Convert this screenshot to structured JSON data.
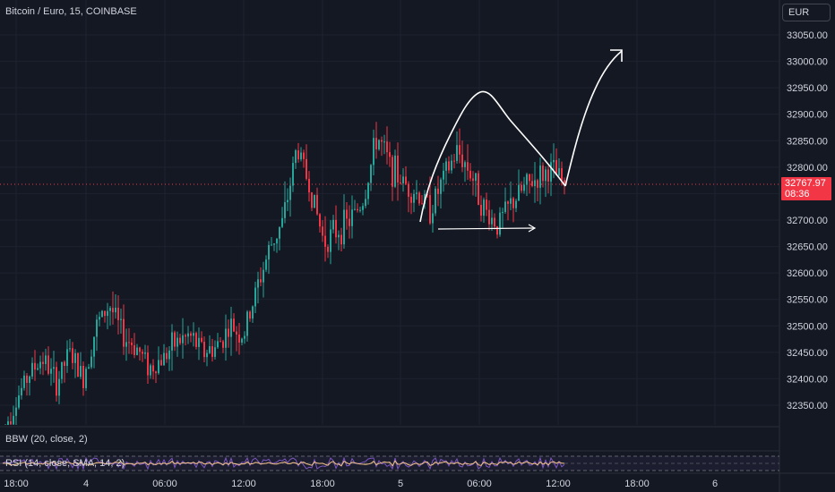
{
  "header": {
    "symbol_title": "Bitcoin / Euro, 15, COINBASE",
    "currency_button": "EUR"
  },
  "last_price": {
    "value": "32767.97",
    "countdown": "08:36"
  },
  "indicators": {
    "bbw_label": "BBW (20, close, 2)",
    "rsi_label": "RSI (14, close, SMA, 14, 2)"
  },
  "colors": {
    "background": "#141823",
    "up": "#26a69a",
    "down": "#f23645",
    "text": "#d1d4dc",
    "grid": "#1e2230",
    "drawing": "#ffffff"
  },
  "chart_data": {
    "type": "candlestick",
    "title": "Bitcoin / Euro, 15, COINBASE",
    "y_ticks": [
      32350,
      32400,
      32450,
      32500,
      32550,
      32600,
      32650,
      32700,
      32750,
      32800,
      32850,
      32900,
      32950,
      33000,
      33050
    ],
    "y_tick_labels": [
      "32350.00",
      "32400.00",
      "32450.00",
      "32500.00",
      "32550.00",
      "32600.00",
      "32650.00",
      "32700.00",
      "32750.00",
      "32800.00",
      "32850.00",
      "32900.00",
      "32950.00",
      "33000.00",
      "33050.00"
    ],
    "ylim": [
      32310,
      33090
    ],
    "x_tick_labels": [
      "18:00",
      "4",
      "06:00",
      "12:00",
      "18:00",
      "5",
      "06:00",
      "12:00",
      "18:00",
      "6"
    ],
    "last_price": 32767.97,
    "candles_start_trend": [
      32300,
      32360,
      32410,
      32440,
      32390,
      32450,
      32400,
      32500,
      32540,
      32480,
      32460,
      32420,
      32440,
      32470,
      32480,
      32450,
      32460,
      32500,
      32480,
      32570,
      32650,
      32700,
      32840,
      32760,
      32660,
      32680,
      32700,
      32740,
      32860,
      32800,
      32770,
      32750,
      32720,
      32780,
      32830,
      32790,
      32720,
      32690,
      32730,
      32760,
      32780,
      32795,
      32768
    ],
    "annotations": [
      "white pennant drawing",
      "white arrow pointing up"
    ]
  }
}
